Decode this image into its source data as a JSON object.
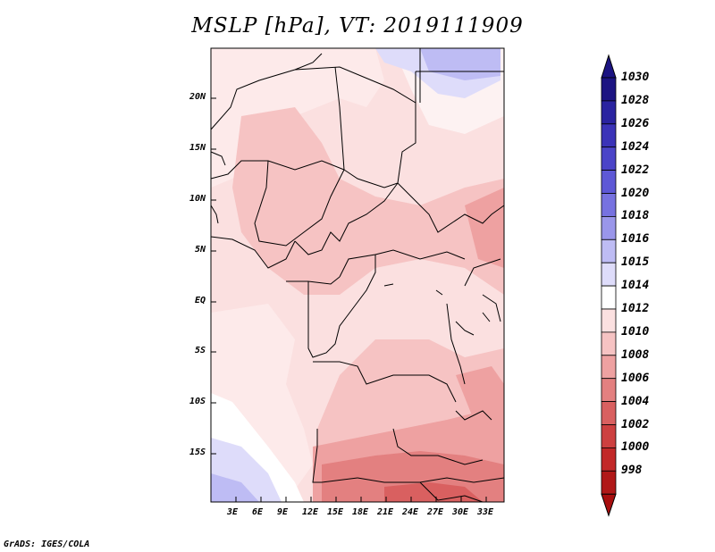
{
  "title": "MSLP [hPa], VT: 2019111909",
  "credit": "GrADS: IGES/COLA",
  "axes": {
    "y_ticks": [
      "20N",
      "15N",
      "10N",
      "5N",
      "EQ",
      "5S",
      "10S",
      "15S"
    ],
    "x_ticks": [
      "3E",
      "6E",
      "9E",
      "12E",
      "15E",
      "18E",
      "21E",
      "24E",
      "27E",
      "30E",
      "33E"
    ]
  },
  "colorbar": {
    "levels": [
      "1030",
      "1028",
      "1026",
      "1024",
      "1022",
      "1020",
      "1018",
      "1016",
      "1015",
      "1014",
      "1012",
      "1010",
      "1008",
      "1006",
      "1004",
      "1002",
      "1000",
      "998"
    ],
    "colors": [
      "#1c1482",
      "#2a23a0",
      "#3b33b8",
      "#4b44c8",
      "#5e58d6",
      "#7772e0",
      "#9a96ea",
      "#bebcf4",
      "#dedcfa",
      "#ffffff",
      "#fbe0e0",
      "#f6c3c3",
      "#eea1a1",
      "#e38080",
      "#d96060",
      "#cd4040",
      "#c22828",
      "#b01818",
      "#a80e0e"
    ],
    "arrow_top_color": "#1c1482",
    "arrow_bottom_color": "#a80e0e"
  },
  "map": {
    "background_color": "#fbe0e0",
    "lon_range": [
      0,
      35
    ],
    "lat_range": [
      -19,
      25
    ]
  }
}
